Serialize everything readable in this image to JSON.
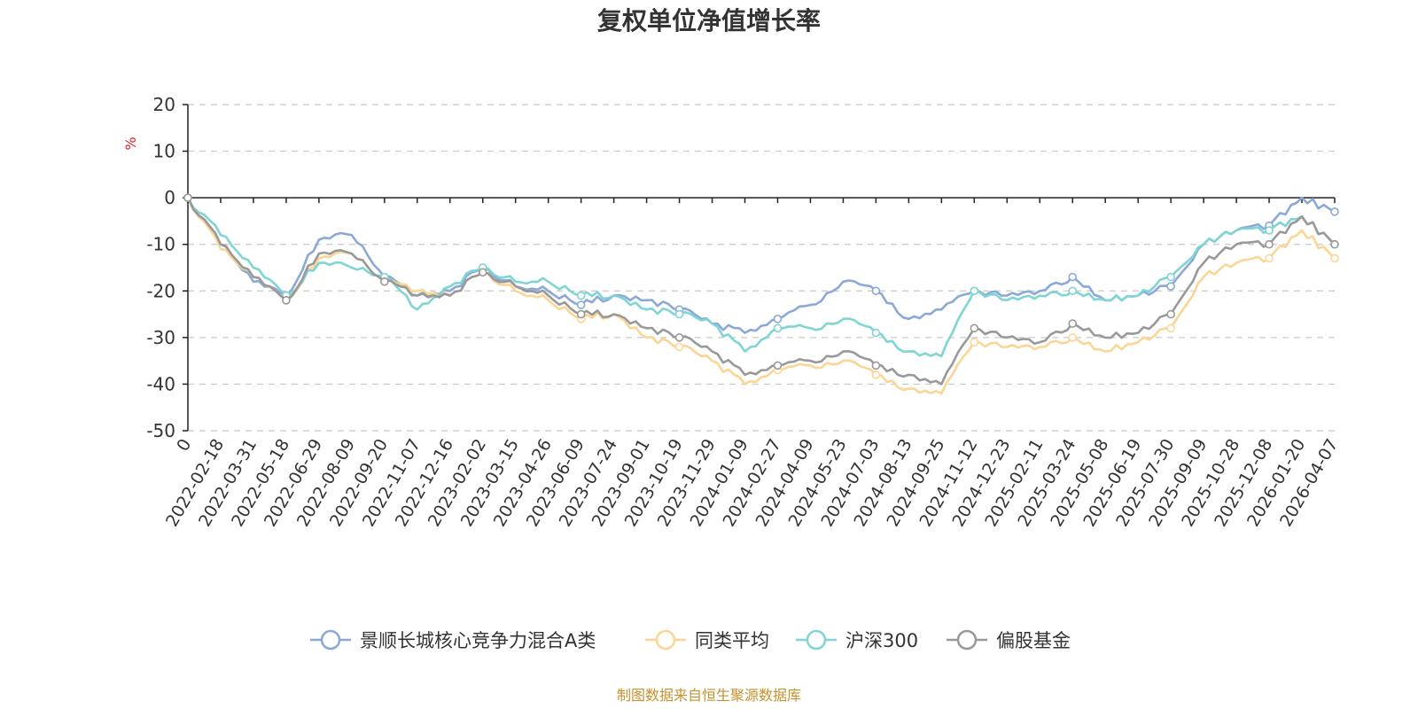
{
  "chart_data": {
    "type": "line",
    "title": "复权单位净值增长率",
    "ylabel": "%",
    "ylim": [
      -50,
      20
    ],
    "yticks": [
      "20",
      "10",
      "0",
      "-10",
      "-20",
      "-30",
      "-40",
      "-50"
    ],
    "grid": true,
    "legend_position": "bottom-center",
    "source": "制图数据来自恒生聚源数据库",
    "categories": [
      "0",
      "2022-02-18",
      "2022-03-31",
      "2022-05-18",
      "2022-06-29",
      "2022-08-09",
      "2022-09-20",
      "2022-11-07",
      "2022-12-16",
      "2023-02-02",
      "2023-03-15",
      "2023-04-26",
      "2023-06-09",
      "2023-07-24",
      "2023-09-01",
      "2023-10-19",
      "2023-11-29",
      "2024-01-09",
      "2024-02-27",
      "2024-04-09",
      "2024-05-23",
      "2024-07-03",
      "2024-08-13",
      "2024-09-25",
      "2024-11-12",
      "2024-12-23",
      "2025-02-11",
      "2025-03-24",
      "2025-05-08",
      "2025-06-19",
      "2025-07-30",
      "2025-09-09",
      "2025-10-28",
      "2025-12-08",
      "2026-01-20",
      "2026-04-07"
    ],
    "series": [
      {
        "name": "景顺长城核心竞争力混合A类",
        "color": "#8aa8d8",
        "values": [
          0,
          -10,
          -18,
          -21,
          -9,
          -8,
          -17,
          -21,
          -20,
          -15,
          -19,
          -20,
          -23,
          -21,
          -22,
          -24,
          -27,
          -29,
          -26,
          -23,
          -18,
          -20,
          -26,
          -24,
          -20,
          -21,
          -20,
          -17,
          -22,
          -21,
          -19,
          -10,
          -7,
          -6,
          0,
          -3
        ]
      },
      {
        "name": "同类平均",
        "color": "#fcd594",
        "values": [
          0,
          -11,
          -17,
          -22,
          -13,
          -12,
          -18,
          -20,
          -21,
          -16,
          -20,
          -22,
          -26,
          -25,
          -30,
          -32,
          -35,
          -40,
          -37,
          -36,
          -35,
          -38,
          -41,
          -42,
          -31,
          -32,
          -32,
          -30,
          -33,
          -31,
          -28,
          -17,
          -14,
          -13,
          -7,
          -13
        ]
      },
      {
        "name": "沪深300",
        "color": "#7fd4d4",
        "values": [
          0,
          -8,
          -15,
          -21,
          -14,
          -15,
          -17,
          -24,
          -19,
          -15,
          -18,
          -18,
          -21,
          -21,
          -24,
          -25,
          -27,
          -33,
          -28,
          -28,
          -26,
          -29,
          -33,
          -34,
          -20,
          -22,
          -21,
          -20,
          -22,
          -21,
          -17,
          -10,
          -7,
          -7,
          -4,
          -10
        ]
      },
      {
        "name": "偏股基金",
        "color": "#999999",
        "values": [
          0,
          -10,
          -17,
          -22,
          -12,
          -12,
          -18,
          -21,
          -21,
          -16,
          -19,
          -21,
          -25,
          -25,
          -28,
          -30,
          -33,
          -38,
          -36,
          -35,
          -33,
          -36,
          -38,
          -40,
          -28,
          -30,
          -31,
          -27,
          -30,
          -29,
          -25,
          -14,
          -10,
          -10,
          -4,
          -10
        ]
      }
    ]
  }
}
